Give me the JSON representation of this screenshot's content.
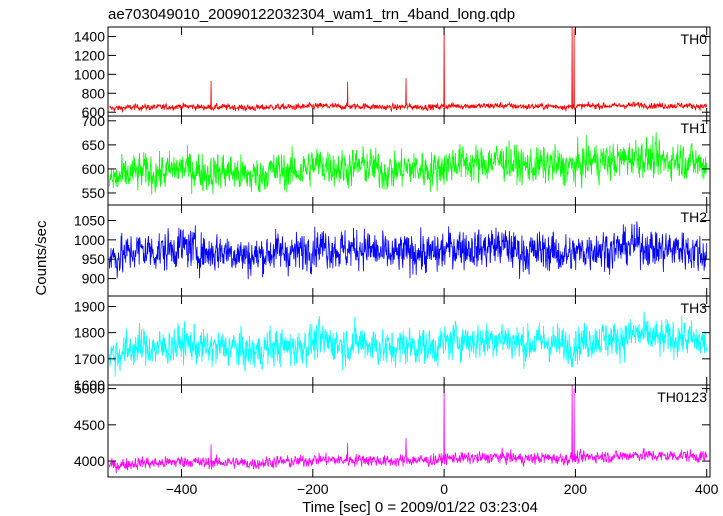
{
  "figure": {
    "title": "ae703049010_20090122032304_wam1_trn_4band_long.qdp"
  },
  "chart_data": {
    "type": "line",
    "title": "ae703049010_20090122032304_wam1_trn_4band_long.qdp",
    "xlabel": "Time [sec] 0 = 2009/01/22 03:23:04",
    "ylabel": "Counts/sec",
    "xlim": [
      -512,
      405
    ],
    "xticks": [
      -400,
      -200,
      0,
      200,
      400
    ],
    "xtick_labels": [
      "−400",
      "−200",
      "0",
      "200",
      "400"
    ],
    "grid": false,
    "legend": "none",
    "panels": [
      {
        "label": "TH0",
        "color": "#ff0000",
        "ylim": [
          560,
          1500
        ],
        "yticks": [
          600,
          800,
          1000,
          1200,
          1400
        ],
        "ytick_labels": [
          "600",
          "800",
          "1000",
          "1200",
          "1400"
        ],
        "baseline": 650,
        "trend": 20,
        "noise": 22,
        "spikes": [
          {
            "t": -355,
            "v": 930
          },
          {
            "t": -147,
            "v": 920
          },
          {
            "t": -58,
            "v": 960
          },
          {
            "t": 0,
            "v": 1500
          },
          {
            "t": 195,
            "v": 1500
          },
          {
            "t": 198,
            "v": 1480
          }
        ]
      },
      {
        "label": "TH1",
        "color": "#00ff00",
        "ylim": [
          525,
          710
        ],
        "yticks": [
          550,
          600,
          650,
          700
        ],
        "ytick_labels": [
          "550",
          "600",
          "650",
          "700"
        ],
        "baseline": 588,
        "trend": 32,
        "noise": 26,
        "spikes": []
      },
      {
        "label": "TH2",
        "color": "#0000ff",
        "ylim": [
          855,
          1090
        ],
        "yticks": [
          900,
          950,
          1000,
          1050
        ],
        "ytick_labels": [
          "900",
          "950",
          "1000",
          "1050"
        ],
        "baseline": 968,
        "trend": 8,
        "noise": 34,
        "spikes": []
      },
      {
        "label": "TH3",
        "color": "#00ffff",
        "ylim": [
          1600,
          1940
        ],
        "yticks": [
          1600,
          1700,
          1800,
          1900
        ],
        "ytick_labels": [
          "1600",
          "1700",
          "1800",
          "1900"
        ],
        "baseline": 1735,
        "trend": 45,
        "noise": 48,
        "spikes": []
      },
      {
        "label": "TH0123",
        "color": "#ff00ff",
        "ylim": [
          3780,
          5050
        ],
        "yticks": [
          4000,
          4500,
          5000
        ],
        "ytick_labels": [
          "4000",
          "4500",
          "5000"
        ],
        "baseline": 3960,
        "trend": 120,
        "noise": 55,
        "spikes": [
          {
            "t": -355,
            "v": 4230
          },
          {
            "t": -147,
            "v": 4250
          },
          {
            "t": -58,
            "v": 4320
          },
          {
            "t": 0,
            "v": 5050
          },
          {
            "t": 195,
            "v": 5050
          },
          {
            "t": 198,
            "v": 5000
          }
        ]
      }
    ]
  }
}
